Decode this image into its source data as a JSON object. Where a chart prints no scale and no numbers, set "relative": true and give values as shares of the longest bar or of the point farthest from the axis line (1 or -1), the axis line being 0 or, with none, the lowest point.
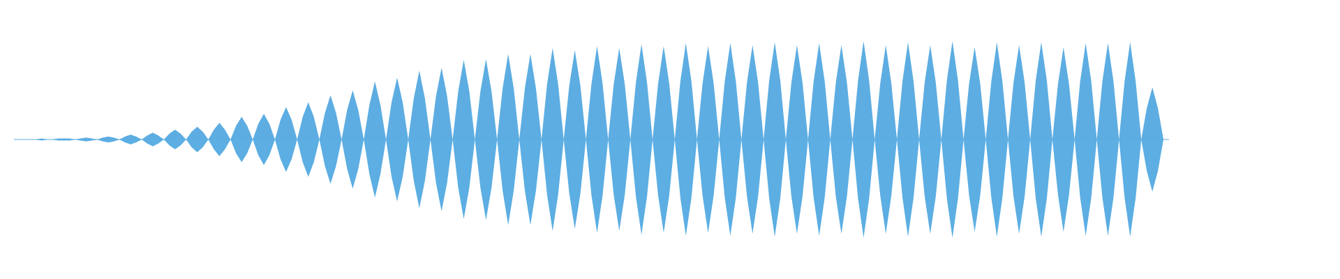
{
  "chart_data": {
    "type": "area",
    "relative": true,
    "categories": [
      null,
      null,
      null,
      null,
      null,
      null,
      null,
      null,
      null,
      null,
      null,
      null,
      null,
      null,
      null,
      null,
      null,
      null,
      null,
      null,
      null,
      null,
      null,
      null,
      null,
      null,
      null,
      null,
      null,
      null,
      null,
      null,
      null,
      null,
      null,
      null,
      null,
      null,
      null,
      null,
      null,
      null,
      null,
      null,
      null,
      null,
      null,
      null,
      null,
      null,
      null,
      null,
      null,
      null,
      null,
      null,
      null,
      null,
      null,
      null,
      null,
      null,
      null,
      null,
      null,
      null,
      null,
      null,
      null,
      null,
      null,
      null,
      null,
      null,
      null,
      null,
      null,
      null,
      null,
      null,
      null,
      null,
      null,
      null,
      null,
      null,
      null,
      null,
      null,
      null,
      null,
      null,
      null,
      null,
      null,
      null,
      null,
      null,
      null,
      null,
      null,
      null,
      null,
      null,
      null,
      null,
      null,
      null,
      null,
      null,
      null,
      null,
      null,
      null,
      null,
      null,
      null,
      null,
      null,
      null,
      null,
      null,
      null,
      null,
      null,
      null,
      null,
      null,
      null,
      null,
      null,
      null,
      null,
      null,
      null,
      null,
      null,
      null,
      null,
      null,
      null,
      null,
      null,
      null,
      null,
      null,
      null,
      null,
      null,
      null,
      null,
      null,
      null,
      null,
      null,
      null,
      null,
      null,
      null,
      null,
      null,
      null,
      null,
      null,
      null,
      null,
      null,
      null,
      null,
      null,
      null,
      null,
      null,
      null,
      null,
      null,
      null,
      null,
      null,
      null,
      null,
      null,
      null,
      null,
      null,
      null,
      null,
      null,
      null,
      null,
      null,
      null,
      null,
      null,
      null,
      null,
      null,
      null,
      null,
      null,
      null,
      null,
      null,
      null,
      null,
      null,
      null,
      null,
      null
    ],
    "series": [
      {
        "color": "#5dade2",
        "values": [
          0,
          0,
          0,
          0,
          0,
          0.01,
          0,
          0,
          0.01,
          0.01,
          0.01,
          0,
          0.01,
          0.02,
          0.01,
          0,
          0.02,
          0.03,
          0.02,
          0,
          0.03,
          0.05,
          0.03,
          0,
          0.04,
          0.07,
          0.04,
          0,
          0.06,
          0.1,
          0.06,
          0,
          0.08,
          0.13,
          0.08,
          0,
          0.1,
          0.17,
          0.1,
          0,
          0.14,
          0.23,
          0.14,
          0,
          0.16,
          0.26,
          0.16,
          0,
          0.2,
          0.33,
          0.2,
          0,
          0.23,
          0.38,
          0.23,
          0,
          0.27,
          0.45,
          0.27,
          0,
          0.3,
          0.5,
          0.3,
          0,
          0.35,
          0.59,
          0.35,
          0,
          0.38,
          0.63,
          0.38,
          0,
          0.42,
          0.7,
          0.42,
          0,
          0.44,
          0.73,
          0.44,
          0,
          0.49,
          0.81,
          0.49,
          0,
          0.49,
          0.82,
          0.49,
          0,
          0.52,
          0.87,
          0.52,
          0,
          0.52,
          0.87,
          0.52,
          0,
          0.56,
          0.93,
          0.56,
          0,
          0.55,
          0.91,
          0.55,
          0,
          0.57,
          0.95,
          0.57,
          0,
          0.56,
          0.93,
          0.56,
          0,
          0.58,
          0.97,
          0.58,
          0,
          0.57,
          0.95,
          0.57,
          0,
          0.59,
          0.98,
          0.59,
          0,
          0.57,
          0.95,
          0.57,
          0,
          0.59,
          0.98,
          0.59,
          0,
          0.58,
          0.96,
          0.58,
          0,
          0.6,
          0.99,
          0.6,
          0,
          0.58,
          0.96,
          0.58,
          0,
          0.59,
          0.98,
          0.59,
          0,
          0.58,
          0.96,
          0.58,
          0,
          0.6,
          1,
          0.6,
          0,
          0.57,
          0.96,
          0.57,
          0,
          0.59,
          0.99,
          0.59,
          0,
          0.58,
          0.96,
          0.58,
          0,
          0.6,
          1,
          0.6,
          0,
          0.57,
          0.94,
          0.57,
          0,
          0.59,
          0.99,
          0.59,
          0,
          0.58,
          0.96,
          0.58,
          0,
          0.6,
          0.99,
          0.6,
          0,
          0.56,
          0.94,
          0.56,
          0,
          0.59,
          0.98,
          0.59,
          0,
          0.59,
          0.98,
          0.59,
          0,
          0.59,
          0.99,
          0.59,
          0,
          0.32,
          0.53,
          0.32,
          0,
          0
        ]
      },
      {
        "color": "#5caee3",
        "values": [
          0,
          0,
          0,
          0,
          0,
          -0.01,
          0,
          0,
          -0.01,
          -0.01,
          -0.01,
          0,
          -0.01,
          -0.02,
          -0.01,
          0,
          -0.02,
          -0.03,
          -0.02,
          0,
          -0.03,
          -0.05,
          -0.03,
          0,
          -0.04,
          -0.07,
          -0.04,
          0,
          -0.06,
          -0.1,
          -0.06,
          0,
          -0.08,
          -0.13,
          -0.08,
          0,
          -0.1,
          -0.17,
          -0.1,
          0,
          -0.14,
          -0.23,
          -0.14,
          0,
          -0.16,
          -0.26,
          -0.16,
          0,
          -0.2,
          -0.33,
          -0.2,
          0,
          -0.23,
          -0.38,
          -0.23,
          0,
          -0.27,
          -0.45,
          -0.27,
          0,
          -0.3,
          -0.5,
          -0.3,
          0,
          -0.35,
          -0.59,
          -0.35,
          0,
          -0.38,
          -0.63,
          -0.38,
          0,
          -0.42,
          -0.7,
          -0.42,
          0,
          -0.44,
          -0.73,
          -0.44,
          0,
          -0.49,
          -0.81,
          -0.49,
          0,
          -0.49,
          -0.82,
          -0.49,
          0,
          -0.52,
          -0.87,
          -0.52,
          0,
          -0.52,
          -0.87,
          -0.52,
          0,
          -0.56,
          -0.93,
          -0.56,
          0,
          -0.55,
          -0.91,
          -0.55,
          0,
          -0.57,
          -0.95,
          -0.57,
          0,
          -0.56,
          -0.93,
          -0.56,
          0,
          -0.58,
          -0.97,
          -0.58,
          0,
          -0.57,
          -0.95,
          -0.57,
          0,
          -0.59,
          -0.98,
          -0.59,
          0,
          -0.57,
          -0.95,
          -0.57,
          0,
          -0.59,
          -0.98,
          -0.59,
          0,
          -0.58,
          -0.96,
          -0.58,
          0,
          -0.6,
          -0.99,
          -0.6,
          0,
          -0.58,
          -0.96,
          -0.58,
          0,
          -0.59,
          -0.98,
          -0.59,
          0,
          -0.58,
          -0.96,
          -0.58,
          0,
          -0.6,
          -1,
          -0.6,
          0,
          -0.57,
          -0.96,
          -0.57,
          0,
          -0.59,
          -0.99,
          -0.59,
          0,
          -0.58,
          -0.96,
          -0.58,
          0,
          -0.6,
          -1,
          -0.6,
          0,
          -0.57,
          -0.94,
          -0.57,
          0,
          -0.59,
          -0.99,
          -0.59,
          0,
          -0.58,
          -0.96,
          -0.58,
          0,
          -0.6,
          -0.99,
          -0.6,
          0,
          -0.56,
          -0.94,
          -0.56,
          0,
          -0.59,
          -0.98,
          -0.59,
          0,
          -0.59,
          -0.98,
          -0.59,
          0,
          -0.59,
          -0.99,
          -0.59,
          0,
          -0.32,
          -0.53,
          -0.32,
          0,
          0
        ]
      }
    ]
  }
}
